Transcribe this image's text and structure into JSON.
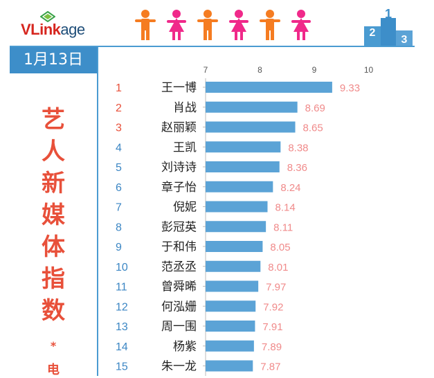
{
  "brand": {
    "logo_text_a": "VLink",
    "logo_text_b": "age"
  },
  "panel": {
    "date": "1月13日",
    "title_chars": [
      "艺",
      "人",
      "新",
      "媒",
      "体",
      "指",
      "数"
    ],
    "star": "*",
    "subtitle_partial": "电"
  },
  "colors": {
    "accent_blue": "#3d8ec9",
    "bar_blue": "#5ba3d6",
    "rank_orange": "#e8503a",
    "rank_blue": "#3b86c4",
    "value_pink": "#f08a8a",
    "figure_orange": "#f57c21",
    "figure_pink": "#f0298a"
  },
  "decor": {
    "figures": [
      "male-figure-icon",
      "female-figure-icon",
      "male-figure-icon",
      "female-figure-icon",
      "male-figure-icon",
      "female-figure-icon"
    ],
    "podium": [
      "2",
      "1",
      "3"
    ]
  },
  "chart_data": {
    "type": "bar",
    "orientation": "horizontal",
    "x_ticks": [
      "7",
      "8",
      "9",
      "10"
    ],
    "xlim": [
      7,
      10
    ],
    "ranks": [
      "1",
      "2",
      "3",
      "4",
      "5",
      "6",
      "7",
      "8",
      "9",
      "10",
      "11",
      "12",
      "13",
      "14",
      "15"
    ],
    "categories": [
      "王一博",
      "肖战",
      "赵丽颖",
      "王凯",
      "刘诗诗",
      "章子怡",
      "倪妮",
      "彭冠英",
      "于和伟",
      "范丞丞",
      "曾舜晞",
      "何泓姗",
      "周一围",
      "杨紫",
      "朱一龙"
    ],
    "values": [
      9.33,
      8.69,
      8.65,
      8.38,
      8.36,
      8.24,
      8.14,
      8.11,
      8.05,
      8.01,
      7.97,
      7.92,
      7.91,
      7.89,
      7.87
    ],
    "value_labels": [
      "9.33",
      "8.69",
      "8.65",
      "8.38",
      "8.36",
      "8.24",
      "8.14",
      "8.11",
      "8.05",
      "8.01",
      "7.97",
      "7.92",
      "7.91",
      "7.89",
      "7.87"
    ],
    "grid": false
  }
}
